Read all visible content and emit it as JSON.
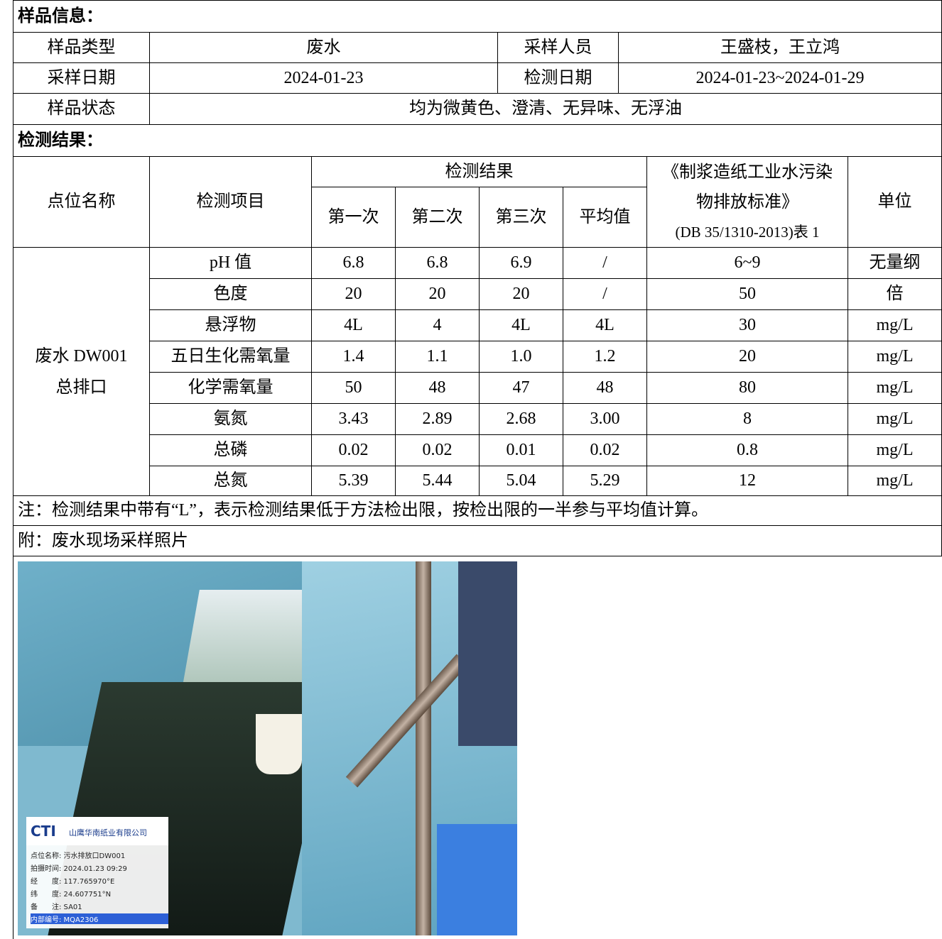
{
  "sample_info": {
    "heading": "样品信息：",
    "rows": [
      [
        "样品类型",
        "废水",
        "采样人员",
        "王盛枝，王立鸿"
      ],
      [
        "采样日期",
        "2024-01-23",
        "检测日期",
        "2024-01-23~2024-01-29"
      ]
    ],
    "state_label": "样品状态",
    "state": "均为微黄色、澄清、无异味、无浮油"
  },
  "results": {
    "heading": "检测结果：",
    "header": {
      "point": "点位名称",
      "item": "检测项目",
      "result": "检测结果",
      "rounds": [
        "第一次",
        "第二次",
        "第三次",
        "平均值"
      ],
      "standard": [
        "《制浆造纸工业水污染",
        "物排放标准》",
        "(DB 35/1310-2013)表 1"
      ],
      "unit": "单位"
    },
    "point": [
      "废水 DW001",
      "总排口"
    ],
    "rows": [
      [
        "pH 值",
        "6.8",
        "6.8",
        "6.9",
        "/",
        "6~9",
        "无量纲"
      ],
      [
        "色度",
        "20",
        "20",
        "20",
        "/",
        "50",
        "倍"
      ],
      [
        "悬浮物",
        "4L",
        "4",
        "4L",
        "4L",
        "30",
        "mg/L"
      ],
      [
        "五日生化需氧量",
        "1.4",
        "1.1",
        "1.0",
        "1.2",
        "20",
        "mg/L"
      ],
      [
        "化学需氧量",
        "50",
        "48",
        "47",
        "48",
        "80",
        "mg/L"
      ],
      [
        "氨氮",
        "3.43",
        "2.89",
        "2.68",
        "3.00",
        "8",
        "mg/L"
      ],
      [
        "总磷",
        "0.02",
        "0.02",
        "0.01",
        "0.02",
        "0.8",
        "mg/L"
      ],
      [
        "总氮",
        "5.39",
        "5.44",
        "5.04",
        "5.29",
        "12",
        "mg/L"
      ]
    ]
  },
  "note": "注：检测结果中带有“L”，表示检测结果低于方法检出限，按检出限的一半参与平均值计算。",
  "attachment": "附：废水现场采样照片",
  "photo": {
    "logo": "CTI",
    "company": "山鹰华南纸业有限公司",
    "lines": [
      "点位名称: 污水排放口DW001",
      "拍摄时间: 2024.01.23 09:29",
      "经　　度: 117.765970°E",
      "纬　　度: 24.607751°N",
      "备　　注: SA01",
      "内部编号: MQA2306"
    ]
  }
}
